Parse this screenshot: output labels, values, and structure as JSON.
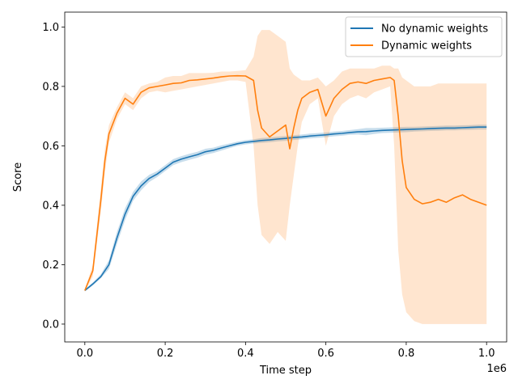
{
  "chart_data": {
    "type": "line",
    "title": "",
    "xlabel": "Time step",
    "ylabel": "Score",
    "x_offset_label": "1e6",
    "xlim": [
      -0.05,
      1.05
    ],
    "ylim": [
      -0.06,
      1.05
    ],
    "x_ticks": [
      0.0,
      0.2,
      0.4,
      0.6,
      0.8,
      1.0
    ],
    "x_tick_labels": [
      "0.0",
      "0.2",
      "0.4",
      "0.6",
      "0.8",
      "1.0"
    ],
    "y_ticks": [
      0.0,
      0.2,
      0.4,
      0.6,
      0.8,
      1.0
    ],
    "y_tick_labels": [
      "0.0",
      "0.2",
      "0.4",
      "0.6",
      "0.8",
      "1.0"
    ],
    "grid": false,
    "legend": "top-right",
    "series": [
      {
        "name": "No dynamic weights",
        "color": "#1f77b4",
        "band_color": "#1f77b4",
        "x": [
          0.0,
          0.02,
          0.04,
          0.06,
          0.08,
          0.1,
          0.12,
          0.14,
          0.16,
          0.18,
          0.2,
          0.22,
          0.24,
          0.26,
          0.28,
          0.3,
          0.32,
          0.34,
          0.36,
          0.38,
          0.4,
          0.42,
          0.44,
          0.46,
          0.48,
          0.5,
          0.52,
          0.54,
          0.56,
          0.58,
          0.6,
          0.62,
          0.64,
          0.66,
          0.68,
          0.7,
          0.72,
          0.74,
          0.76,
          0.78,
          0.8,
          0.82,
          0.84,
          0.86,
          0.88,
          0.9,
          0.92,
          0.94,
          0.96,
          0.98,
          1.0
        ],
        "y": [
          0.113,
          0.135,
          0.16,
          0.2,
          0.29,
          0.37,
          0.43,
          0.465,
          0.49,
          0.505,
          0.525,
          0.545,
          0.555,
          0.563,
          0.57,
          0.58,
          0.585,
          0.593,
          0.6,
          0.607,
          0.612,
          0.615,
          0.618,
          0.62,
          0.623,
          0.625,
          0.628,
          0.63,
          0.633,
          0.635,
          0.637,
          0.64,
          0.642,
          0.645,
          0.647,
          0.648,
          0.65,
          0.652,
          0.653,
          0.654,
          0.655,
          0.656,
          0.657,
          0.658,
          0.659,
          0.66,
          0.66,
          0.661,
          0.662,
          0.663,
          0.663
        ],
        "lower": [
          0.11,
          0.13,
          0.155,
          0.185,
          0.27,
          0.35,
          0.415,
          0.45,
          0.478,
          0.495,
          0.515,
          0.535,
          0.545,
          0.553,
          0.56,
          0.57,
          0.576,
          0.584,
          0.592,
          0.6,
          0.605,
          0.608,
          0.61,
          0.612,
          0.615,
          0.617,
          0.62,
          0.622,
          0.625,
          0.627,
          0.629,
          0.632,
          0.634,
          0.637,
          0.638,
          0.636,
          0.64,
          0.643,
          0.644,
          0.645,
          0.646,
          0.648,
          0.649,
          0.65,
          0.651,
          0.652,
          0.652,
          0.653,
          0.654,
          0.655,
          0.655
        ],
        "upper": [
          0.116,
          0.14,
          0.168,
          0.215,
          0.31,
          0.39,
          0.445,
          0.48,
          0.502,
          0.515,
          0.535,
          0.555,
          0.565,
          0.573,
          0.58,
          0.59,
          0.594,
          0.602,
          0.608,
          0.614,
          0.619,
          0.622,
          0.626,
          0.628,
          0.631,
          0.633,
          0.636,
          0.638,
          0.641,
          0.643,
          0.645,
          0.648,
          0.65,
          0.653,
          0.656,
          0.66,
          0.66,
          0.661,
          0.662,
          0.663,
          0.664,
          0.664,
          0.665,
          0.666,
          0.667,
          0.668,
          0.668,
          0.669,
          0.67,
          0.671,
          0.671
        ]
      },
      {
        "name": "Dynamic weights",
        "color": "#ff7f0e",
        "band_color": "#ff7f0e",
        "x": [
          0.0,
          0.02,
          0.04,
          0.05,
          0.06,
          0.08,
          0.1,
          0.12,
          0.14,
          0.16,
          0.18,
          0.2,
          0.22,
          0.24,
          0.26,
          0.28,
          0.3,
          0.32,
          0.34,
          0.36,
          0.38,
          0.4,
          0.42,
          0.43,
          0.44,
          0.46,
          0.48,
          0.5,
          0.51,
          0.52,
          0.53,
          0.54,
          0.56,
          0.58,
          0.6,
          0.62,
          0.64,
          0.66,
          0.68,
          0.7,
          0.72,
          0.74,
          0.76,
          0.77,
          0.78,
          0.79,
          0.8,
          0.82,
          0.84,
          0.86,
          0.88,
          0.9,
          0.92,
          0.94,
          0.96,
          0.98,
          1.0
        ],
        "y": [
          0.113,
          0.18,
          0.42,
          0.55,
          0.64,
          0.71,
          0.76,
          0.74,
          0.78,
          0.795,
          0.8,
          0.805,
          0.81,
          0.812,
          0.82,
          0.822,
          0.825,
          0.828,
          0.832,
          0.835,
          0.836,
          0.835,
          0.82,
          0.72,
          0.66,
          0.63,
          0.65,
          0.67,
          0.59,
          0.66,
          0.72,
          0.76,
          0.78,
          0.79,
          0.7,
          0.76,
          0.79,
          0.81,
          0.815,
          0.81,
          0.82,
          0.825,
          0.83,
          0.82,
          0.7,
          0.55,
          0.46,
          0.42,
          0.405,
          0.41,
          0.42,
          0.41,
          0.425,
          0.435,
          0.42,
          0.41,
          0.4
        ],
        "lower": [
          0.11,
          0.16,
          0.38,
          0.51,
          0.61,
          0.69,
          0.74,
          0.72,
          0.76,
          0.78,
          0.785,
          0.78,
          0.785,
          0.79,
          0.795,
          0.8,
          0.805,
          0.81,
          0.815,
          0.82,
          0.82,
          0.815,
          0.6,
          0.4,
          0.3,
          0.27,
          0.31,
          0.28,
          0.4,
          0.5,
          0.6,
          0.68,
          0.74,
          0.76,
          0.6,
          0.7,
          0.74,
          0.76,
          0.77,
          0.76,
          0.78,
          0.79,
          0.8,
          0.6,
          0.25,
          0.1,
          0.04,
          0.01,
          0.0,
          0.0,
          0.0,
          0.0,
          0.0,
          0.0,
          0.0,
          0.0,
          0.0
        ],
        "upper": [
          0.116,
          0.2,
          0.46,
          0.59,
          0.67,
          0.73,
          0.78,
          0.76,
          0.8,
          0.81,
          0.815,
          0.83,
          0.835,
          0.835,
          0.845,
          0.845,
          0.845,
          0.846,
          0.85,
          0.85,
          0.852,
          0.855,
          0.9,
          0.97,
          0.99,
          0.99,
          0.97,
          0.95,
          0.86,
          0.84,
          0.83,
          0.82,
          0.82,
          0.83,
          0.8,
          0.82,
          0.85,
          0.86,
          0.86,
          0.86,
          0.86,
          0.87,
          0.87,
          0.86,
          0.86,
          0.83,
          0.82,
          0.8,
          0.8,
          0.8,
          0.81,
          0.81,
          0.81,
          0.81,
          0.81,
          0.81,
          0.81
        ]
      }
    ]
  }
}
